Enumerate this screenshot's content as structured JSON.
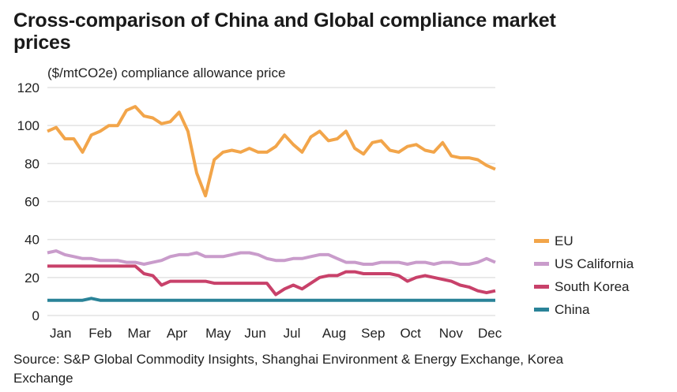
{
  "header": {
    "title": "Cross-comparison of China and Global compliance market prices",
    "subtitle": "($/mtCO2e) compliance allowance price"
  },
  "footer": {
    "source": "Source: S&P Global Commodity Insights, Shanghai Environment & Energy Exchange, Korea Exchange"
  },
  "chart_data": {
    "type": "line",
    "title": "Cross-comparison of China and Global compliance market prices",
    "ylabel": "($/mtCO2e) compliance allowance price",
    "xlabel": "",
    "x_ticks": [
      "Jan",
      "Feb",
      "Mar",
      "Apr",
      "May",
      "Jun",
      "Jul",
      "Aug",
      "Sep",
      "Oct",
      "Nov",
      "Dec"
    ],
    "y_ticks": [
      0,
      20,
      40,
      60,
      80,
      100,
      120
    ],
    "ylim": [
      0,
      120
    ],
    "x_unit": "week of year (0-51)",
    "grid": true,
    "legend_position": "right",
    "series": [
      {
        "name": "EU",
        "color": "#F2A54A",
        "values": [
          97,
          99,
          93,
          93,
          86,
          95,
          97,
          100,
          100,
          108,
          110,
          105,
          104,
          101,
          102,
          107,
          97,
          75,
          63,
          82,
          86,
          87,
          86,
          88,
          86,
          86,
          89,
          95,
          90,
          86,
          94,
          97,
          92,
          93,
          97,
          88,
          85,
          91,
          92,
          87,
          86,
          89,
          90,
          87,
          86,
          91,
          84,
          83,
          83,
          82,
          79,
          77
        ]
      },
      {
        "name": "US California",
        "color": "#C99CCB",
        "values": [
          33,
          34,
          32,
          31,
          30,
          30,
          29,
          29,
          29,
          28,
          28,
          27,
          28,
          29,
          31,
          32,
          32,
          33,
          31,
          31,
          31,
          32,
          33,
          33,
          32,
          30,
          29,
          29,
          30,
          30,
          31,
          32,
          32,
          30,
          28,
          28,
          27,
          27,
          28,
          28,
          28,
          27,
          28,
          28,
          27,
          28,
          28,
          27,
          27,
          28,
          30,
          28
        ]
      },
      {
        "name": "South Korea",
        "color": "#C8416A",
        "values": [
          26,
          26,
          26,
          26,
          26,
          26,
          26,
          26,
          26,
          26,
          26,
          22,
          21,
          16,
          18,
          18,
          18,
          18,
          18,
          17,
          17,
          17,
          17,
          17,
          17,
          17,
          11,
          14,
          16,
          14,
          17,
          20,
          21,
          21,
          23,
          23,
          22,
          22,
          22,
          22,
          21,
          18,
          20,
          21,
          20,
          19,
          18,
          16,
          15,
          13,
          12,
          13
        ]
      },
      {
        "name": "China",
        "color": "#2A8398",
        "values": [
          8,
          8,
          8,
          8,
          8,
          9,
          8,
          8,
          8,
          8,
          8,
          8,
          8,
          8,
          8,
          8,
          8,
          8,
          8,
          8,
          8,
          8,
          8,
          8,
          8,
          8,
          8,
          8,
          8,
          8,
          8,
          8,
          8,
          8,
          8,
          8,
          8,
          8,
          8,
          8,
          8,
          8,
          8,
          8,
          8,
          8,
          8,
          8,
          8,
          8,
          8,
          8
        ]
      }
    ]
  }
}
